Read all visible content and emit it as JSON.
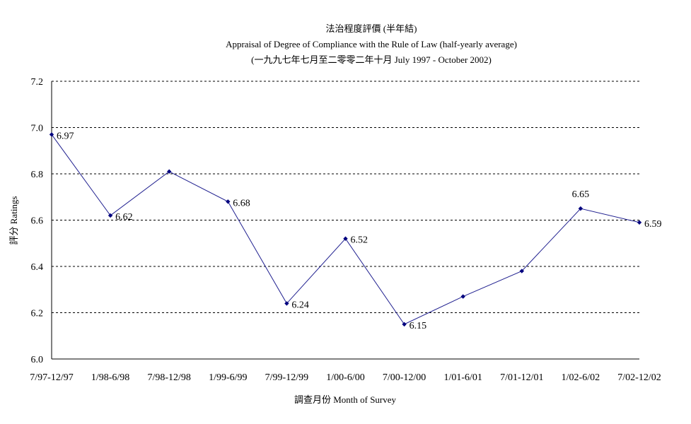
{
  "chart_data": {
    "type": "line",
    "title": "法治程度評價 (半年結)",
    "subtitle": "Appraisal of Degree of Compliance with the Rule of Law (half-yearly average)",
    "subtitle2": "(一九九七年七月至二零零二年十月 July 1997 - October 2002)",
    "xlabel": "調查月份 Month of Survey",
    "ylabel": "評分 Ratings",
    "categories": [
      "7/97-12/97",
      "1/98-6/98",
      "7/98-12/98",
      "1/99-6/99",
      "7/99-12/99",
      "1/00-6/00",
      "7/00-12/00",
      "1/01-6/01",
      "7/01-12/01",
      "1/02-6/02",
      "7/02-12/02"
    ],
    "values": [
      6.97,
      6.62,
      6.81,
      6.68,
      6.24,
      6.52,
      6.15,
      6.27,
      6.38,
      6.65,
      6.59
    ],
    "data_labels": [
      "6.97",
      "6.62",
      "",
      "6.68",
      "6.24",
      "6.52",
      "6.15",
      "",
      "",
      "6.65",
      "6.59"
    ],
    "ylim": [
      6.0,
      7.2
    ],
    "yticks": [
      "6.0",
      "6.2",
      "6.4",
      "6.6",
      "6.8",
      "7.0",
      "7.2"
    ],
    "grid": true,
    "colors": {
      "line": "#1f1f8f",
      "marker": "#00007f",
      "grid": "#000000"
    }
  }
}
